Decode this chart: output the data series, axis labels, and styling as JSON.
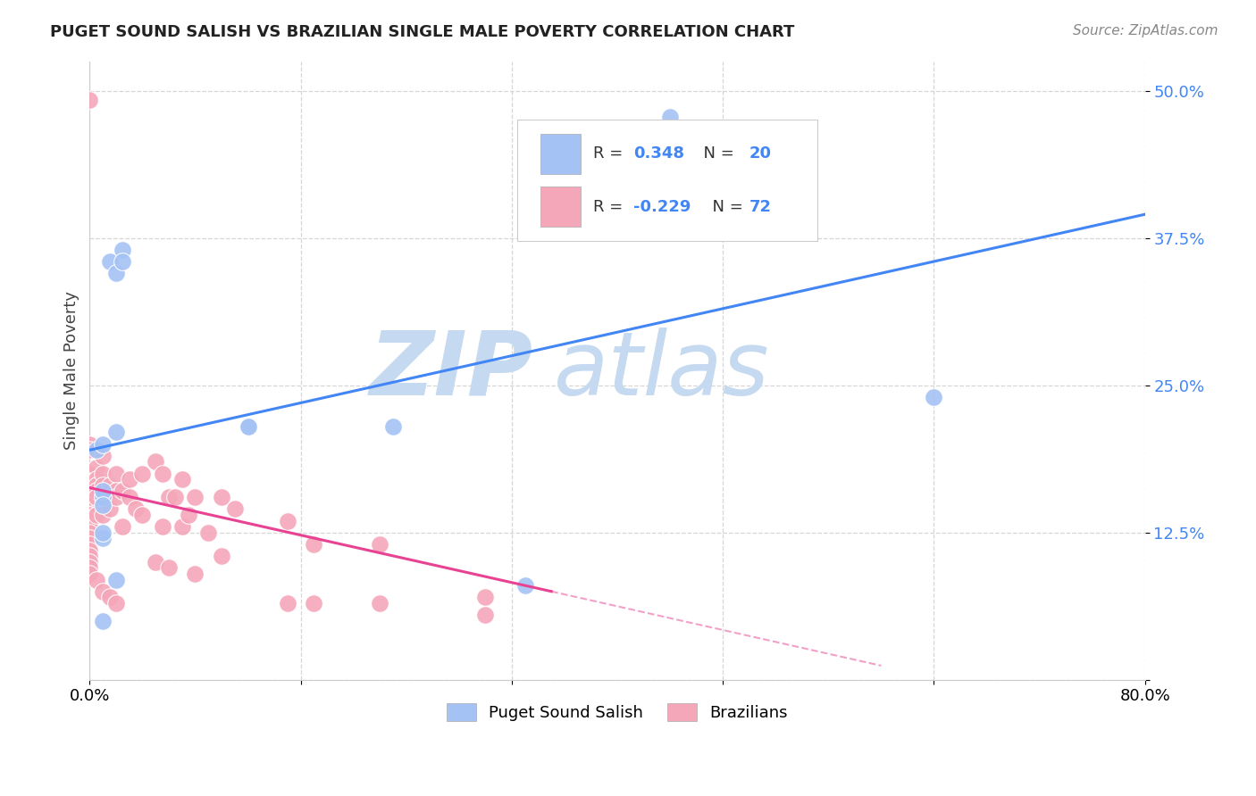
{
  "title": "PUGET SOUND SALISH VS BRAZILIAN SINGLE MALE POVERTY CORRELATION CHART",
  "source": "Source: ZipAtlas.com",
  "ylabel": "Single Male Poverty",
  "legend_label1": "Puget Sound Salish",
  "legend_label2": "Brazilians",
  "R1": 0.348,
  "N1": 20,
  "R2": -0.229,
  "N2": 72,
  "blue_color": "#a4c2f4",
  "pink_color": "#f4a7b9",
  "line_blue": "#4285f4",
  "line_pink": "#e84393",
  "watermark_zip_color": "#c5d9f0",
  "watermark_atlas_color": "#c5d9f0",
  "xlim": [
    0.0,
    0.8
  ],
  "ylim": [
    0.0,
    0.525
  ],
  "yticks": [
    0.0,
    0.125,
    0.25,
    0.375,
    0.5
  ],
  "ytick_labels": [
    "",
    "12.5%",
    "25.0%",
    "37.5%",
    "50.0%"
  ],
  "xticks": [
    0.0,
    0.16,
    0.32,
    0.48,
    0.64,
    0.8
  ],
  "xtick_labels": [
    "0.0%",
    "",
    "",
    "",
    "",
    "80.0%"
  ],
  "blue_line_x0": 0.0,
  "blue_line_y0": 0.195,
  "blue_line_x1": 0.8,
  "blue_line_y1": 0.395,
  "pink_line_solid_x0": 0.0,
  "pink_line_solid_y0": 0.163,
  "pink_line_solid_x1": 0.35,
  "pink_line_solid_y1": 0.075,
  "pink_line_dash_x0": 0.35,
  "pink_line_dash_y0": 0.075,
  "pink_line_dash_x1": 0.6,
  "pink_line_dash_y1": 0.012,
  "blue_x": [
    0.44,
    0.005,
    0.01,
    0.015,
    0.02,
    0.025,
    0.025,
    0.01,
    0.01,
    0.01,
    0.02,
    0.12,
    0.12,
    0.23,
    0.64,
    0.01,
    0.01,
    0.02,
    0.33,
    0.01
  ],
  "blue_y": [
    0.478,
    0.195,
    0.2,
    0.355,
    0.345,
    0.365,
    0.355,
    0.155,
    0.16,
    0.148,
    0.21,
    0.215,
    0.215,
    0.215,
    0.24,
    0.12,
    0.125,
    0.085,
    0.08,
    0.05
  ],
  "pink_x": [
    0.0,
    0.0,
    0.0,
    0.0,
    0.0,
    0.0,
    0.0,
    0.0,
    0.0,
    0.0,
    0.0,
    0.0,
    0.0,
    0.0,
    0.0,
    0.0,
    0.0,
    0.0,
    0.0,
    0.0,
    0.005,
    0.005,
    0.005,
    0.005,
    0.005,
    0.005,
    0.005,
    0.01,
    0.01,
    0.01,
    0.01,
    0.01,
    0.01,
    0.015,
    0.015,
    0.015,
    0.015,
    0.02,
    0.02,
    0.02,
    0.02,
    0.025,
    0.025,
    0.03,
    0.03,
    0.035,
    0.04,
    0.04,
    0.05,
    0.05,
    0.055,
    0.055,
    0.06,
    0.06,
    0.065,
    0.07,
    0.07,
    0.075,
    0.08,
    0.08,
    0.09,
    0.1,
    0.1,
    0.11,
    0.15,
    0.15,
    0.17,
    0.17,
    0.22,
    0.22,
    0.3,
    0.3
  ],
  "pink_y": [
    0.492,
    0.2,
    0.195,
    0.175,
    0.165,
    0.16,
    0.155,
    0.15,
    0.155,
    0.14,
    0.135,
    0.13,
    0.125,
    0.12,
    0.115,
    0.11,
    0.105,
    0.1,
    0.095,
    0.09,
    0.18,
    0.17,
    0.165,
    0.16,
    0.155,
    0.14,
    0.085,
    0.19,
    0.175,
    0.165,
    0.155,
    0.14,
    0.075,
    0.165,
    0.155,
    0.145,
    0.07,
    0.175,
    0.16,
    0.155,
    0.065,
    0.16,
    0.13,
    0.17,
    0.155,
    0.145,
    0.175,
    0.14,
    0.185,
    0.1,
    0.175,
    0.13,
    0.155,
    0.095,
    0.155,
    0.17,
    0.13,
    0.14,
    0.155,
    0.09,
    0.125,
    0.155,
    0.105,
    0.145,
    0.135,
    0.065,
    0.115,
    0.065,
    0.115,
    0.065,
    0.07,
    0.055
  ]
}
